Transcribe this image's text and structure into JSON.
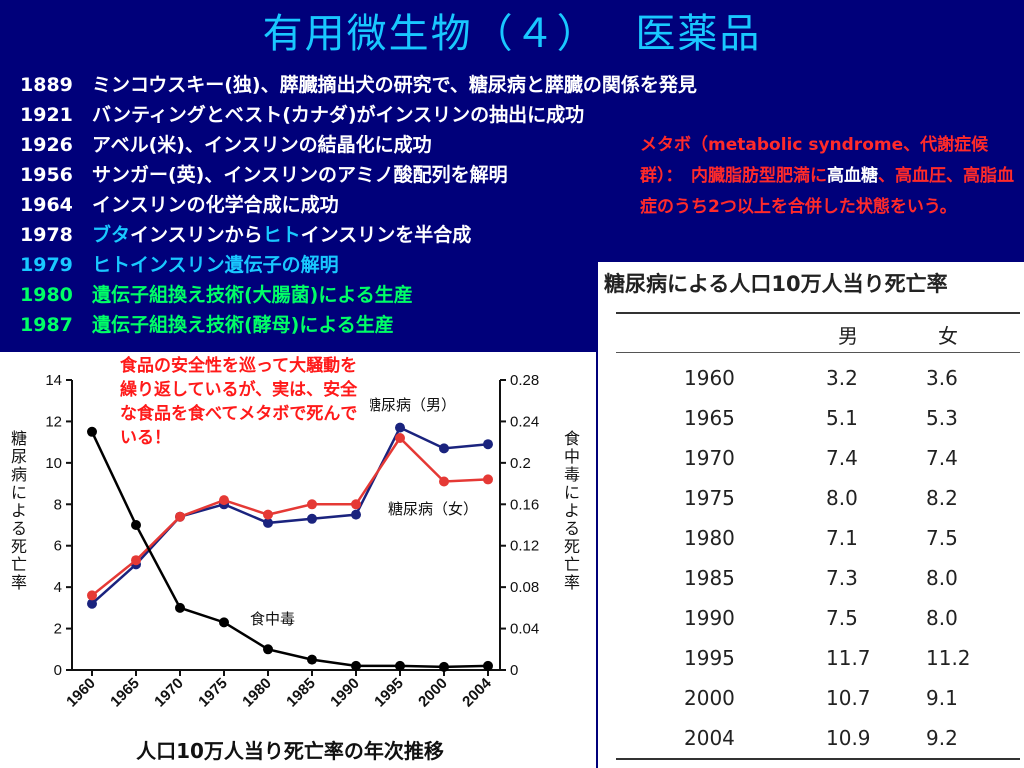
{
  "title": "有用微生物（４）　 医薬品",
  "timeline": [
    {
      "year": "1889",
      "parts": [
        {
          "text": "ミンコウスキー(独)、膵臓摘出犬の研究で、糖尿病と膵臓の関係を発見",
          "color": "white"
        }
      ]
    },
    {
      "year": "1921",
      "parts": [
        {
          "text": "バンティングとベスト(カナダ)がインスリンの抽出に成功",
          "color": "white"
        }
      ]
    },
    {
      "year": "1926",
      "parts": [
        {
          "text": "アベル(米)、インスリンの結晶化に成功",
          "color": "white"
        }
      ]
    },
    {
      "year": "1956",
      "parts": [
        {
          "text": "サンガー(英)、インスリンのアミノ酸配列を解明",
          "color": "white"
        }
      ]
    },
    {
      "year": "1964",
      "parts": [
        {
          "text": "インスリンの化学合成に成功",
          "color": "white"
        }
      ]
    },
    {
      "year": "1978",
      "parts": [
        {
          "text": "ブタ",
          "color": "cyan"
        },
        {
          "text": "インスリンから",
          "color": "white"
        },
        {
          "text": "ヒト",
          "color": "cyan"
        },
        {
          "text": "インスリンを半合成",
          "color": "white"
        }
      ]
    },
    {
      "year": "1979",
      "year_color": "cyan",
      "parts": [
        {
          "text": "ヒトインスリン遺伝子の解明",
          "color": "cyan"
        }
      ]
    },
    {
      "year": "1980",
      "year_color": "green",
      "parts": [
        {
          "text": "遺伝子組換え技術(大腸菌)による生産",
          "color": "green"
        }
      ]
    },
    {
      "year": "1987",
      "year_color": "green",
      "parts": [
        {
          "text": "遺伝子組換え技術(酵母)による生産",
          "color": "green"
        }
      ]
    }
  ],
  "metabolic_note": {
    "part1": "メタボ（metabolic syndrome、代謝症候群）：　内臓脂肪型肥満に",
    "highlight": "高血糖",
    "part2": "、高血圧、高脂血症のうち2つ以上を合併した状態をいう。"
  },
  "food_note": "食品の安全性を巡って大騒動を繰り返しているが、実は、安全な食品を食べてメタボで死んでいる！",
  "colors": {
    "background": "#00007a",
    "title": "#19c8ff",
    "white": "#ffffff",
    "cyan": "#19c8ff",
    "green": "#00ff66",
    "note_red": "#ff2a2a",
    "series_male": "#1a237e",
    "series_female": "#e53935",
    "series_food": "#000000"
  },
  "chart_data": {
    "type": "line",
    "title": "",
    "xlabel": "人口10万人当り死亡率の年次推移",
    "ylabel_left": "糖尿病による死亡率",
    "ylabel_right": "食中毒による死亡率",
    "categories": [
      "1960",
      "1965",
      "1970",
      "1975",
      "1980",
      "1985",
      "1990",
      "1995",
      "2000",
      "2004"
    ],
    "ylim_left": [
      0,
      14
    ],
    "yticks_left": [
      "0",
      "2",
      "4",
      "6",
      "8",
      "10",
      "12",
      "14"
    ],
    "ylim_right": [
      0,
      0.28
    ],
    "yticks_right": [
      "0",
      "0.04",
      "0.08",
      "0.12",
      "0.16",
      "0.2",
      "0.24",
      "0.28"
    ],
    "grid": false,
    "series": [
      {
        "name": "糖尿病（男）",
        "axis": "left",
        "color": "#1a237e",
        "values": [
          3.2,
          5.1,
          7.4,
          8.0,
          7.1,
          7.3,
          7.5,
          11.7,
          10.7,
          10.9
        ]
      },
      {
        "name": "糖尿病（女）",
        "axis": "left",
        "color": "#e53935",
        "values": [
          3.6,
          5.3,
          7.4,
          8.2,
          7.5,
          8.0,
          8.0,
          11.2,
          9.1,
          9.2
        ]
      },
      {
        "name": "食中毒",
        "axis": "right",
        "color": "#000000",
        "values": [
          0.23,
          0.14,
          0.06,
          0.046,
          0.02,
          0.01,
          0.004,
          0.004,
          0.003,
          0.004
        ]
      }
    ]
  },
  "death_table": {
    "title": "糖尿病による人口10万人当り死亡率",
    "columns": [
      "",
      "男",
      "女"
    ],
    "rows": [
      [
        "1960",
        "3.2",
        "3.6"
      ],
      [
        "1965",
        "5.1",
        "5.3"
      ],
      [
        "1970",
        "7.4",
        "7.4"
      ],
      [
        "1975",
        "8.0",
        "8.2"
      ],
      [
        "1980",
        "7.1",
        "7.5"
      ],
      [
        "1985",
        "7.3",
        "8.0"
      ],
      [
        "1990",
        "7.5",
        "8.0"
      ],
      [
        "1995",
        "11.7",
        "11.2"
      ],
      [
        "2000",
        "10.7",
        "9.1"
      ],
      [
        "2004",
        "10.9",
        "9.2"
      ]
    ]
  }
}
